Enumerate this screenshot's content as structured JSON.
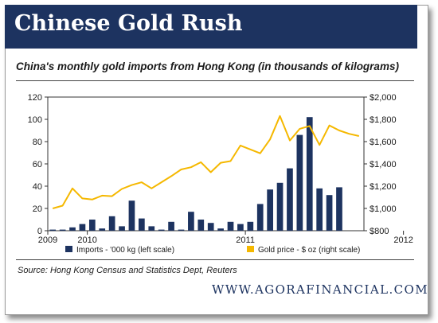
{
  "header": {
    "title": "Chinese Gold Rush",
    "subtitle": "China's monthly gold imports from Hong Kong (in thousands of kilograms)"
  },
  "footer": {
    "source": "Source: Hong Kong Census and Statistics Dept, Reuters",
    "brand": "WWW.AGORAFINANCIAL.COM"
  },
  "chart_data": {
    "type": "bar",
    "title": "",
    "xlabel": "",
    "x_tick_labels": [
      "2009",
      "2010",
      "2011",
      "2012"
    ],
    "x_tick_month_index": [
      0,
      4,
      20,
      36
    ],
    "grid": false,
    "legend_position": "bottom",
    "colors": {
      "bars": "#1d3360",
      "line": "#f5b800",
      "axis": "#333333"
    },
    "left_axis": {
      "ylim": [
        0,
        120
      ],
      "ticks": [
        0,
        20,
        40,
        60,
        80,
        100,
        120
      ],
      "labels": [
        "0",
        "20",
        "40",
        "60",
        "80",
        "100",
        "120"
      ]
    },
    "right_axis": {
      "ylim": [
        800,
        2000
      ],
      "ticks": [
        800,
        1000,
        1200,
        1400,
        1600,
        1800,
        2000
      ],
      "labels": [
        "$800",
        "$1,000",
        "$1,200",
        "$1,400",
        "$1,600",
        "$1,800",
        "$2,000"
      ]
    },
    "series": [
      {
        "name": "Imports - '000 kg (left scale)",
        "kind": "bar",
        "axis": "left",
        "values": [
          1,
          1,
          3,
          6,
          10,
          2,
          13,
          4,
          27,
          11,
          4,
          1,
          8,
          1,
          17,
          10,
          7,
          2,
          8,
          6,
          8,
          24,
          37,
          43,
          56,
          86,
          102,
          38,
          32,
          39
        ]
      },
      {
        "name": "Gold price - $ oz (right scale)",
        "kind": "line",
        "axis": "right",
        "values": [
          1000,
          1025,
          1180,
          1090,
          1080,
          1115,
          1110,
          1175,
          1210,
          1235,
          1180,
          1235,
          1290,
          1350,
          1370,
          1415,
          1325,
          1410,
          1425,
          1565,
          1530,
          1495,
          1620,
          1830,
          1610,
          1715,
          1740,
          1570,
          1745,
          1700,
          1670,
          1650
        ]
      }
    ]
  }
}
